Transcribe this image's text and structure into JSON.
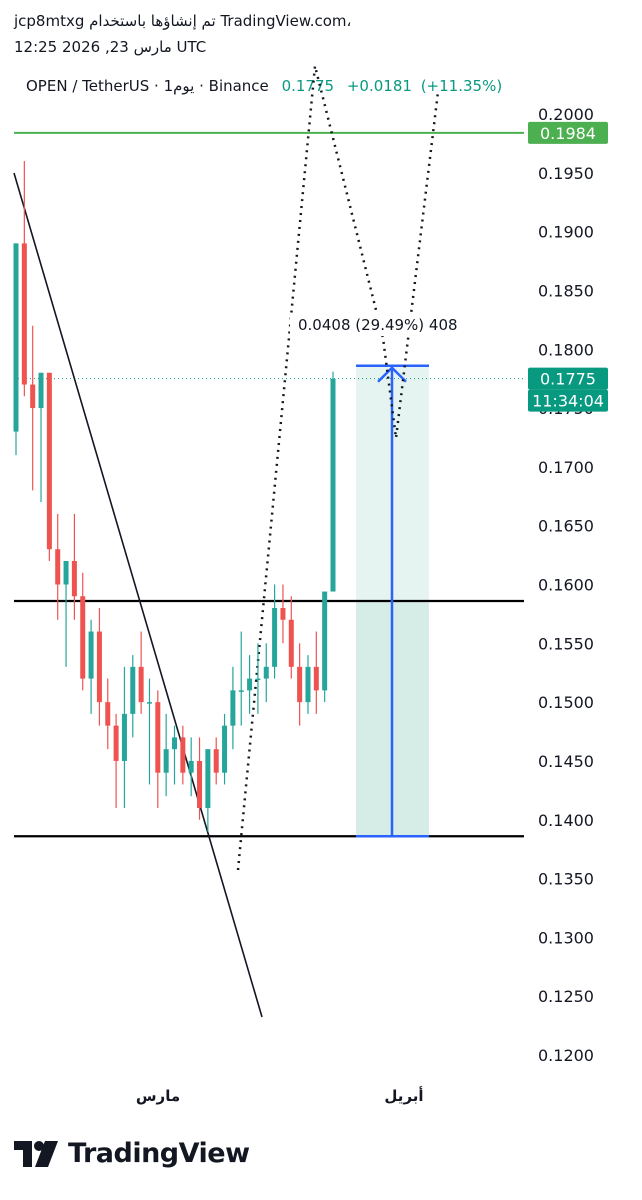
{
  "header": {
    "line1": "jcp8mtxg تم إنشاؤها باستخدام TradingView.com،",
    "line2": "مارس 23, 2026 12:25 UTC"
  },
  "legend": {
    "symbol": "OPEN / TetherUS · 1يوم · Binance",
    "price": "0.1775",
    "change": "+0.0181",
    "change_pct": "(+11.35%)"
  },
  "measure": {
    "label": "0.0408 (29.49%) 408"
  },
  "logo": {
    "text": "TradingView",
    "icon": "tradingview-logo-icon"
  },
  "chart_data": {
    "type": "candlestick",
    "y_axis": {
      "ticks": [
        "0.2000",
        "0.1950",
        "0.1900",
        "0.1850",
        "0.1800",
        "0.1750",
        "0.1700",
        "0.1650",
        "0.1600",
        "0.1550",
        "0.1500",
        "0.1450",
        "0.1400",
        "0.1350",
        "0.1300",
        "0.1250",
        "0.1200"
      ],
      "range": [
        0.12,
        0.2
      ]
    },
    "x_axis": {
      "labels": [
        "مارس",
        "أبريل"
      ]
    },
    "price_badges": [
      {
        "value": "0.1984",
        "color": "#4caf50"
      },
      {
        "value": "0.1775",
        "color": "#089981"
      },
      {
        "value": "11:34:04",
        "color": "#089981"
      }
    ],
    "horizontal_lines": [
      {
        "price": 0.1984,
        "color": "#4caf50"
      },
      {
        "price": 0.1586,
        "color": "#000000"
      },
      {
        "price": 0.1386,
        "color": "#000000"
      }
    ],
    "current_price_line": 0.1775,
    "colors": {
      "up": "#26a69a",
      "down": "#ef5350"
    },
    "candles": [
      {
        "o": 0.173,
        "h": 0.189,
        "l": 0.171,
        "c": 0.189
      },
      {
        "o": 0.189,
        "h": 0.196,
        "l": 0.176,
        "c": 0.177
      },
      {
        "o": 0.177,
        "h": 0.182,
        "l": 0.168,
        "c": 0.175
      },
      {
        "o": 0.175,
        "h": 0.178,
        "l": 0.167,
        "c": 0.178
      },
      {
        "o": 0.178,
        "h": 0.178,
        "l": 0.162,
        "c": 0.163
      },
      {
        "o": 0.163,
        "h": 0.166,
        "l": 0.157,
        "c": 0.16
      },
      {
        "o": 0.16,
        "h": 0.162,
        "l": 0.153,
        "c": 0.162
      },
      {
        "o": 0.162,
        "h": 0.166,
        "l": 0.157,
        "c": 0.159
      },
      {
        "o": 0.159,
        "h": 0.161,
        "l": 0.151,
        "c": 0.152
      },
      {
        "o": 0.152,
        "h": 0.157,
        "l": 0.149,
        "c": 0.156
      },
      {
        "o": 0.156,
        "h": 0.158,
        "l": 0.148,
        "c": 0.15
      },
      {
        "o": 0.15,
        "h": 0.152,
        "l": 0.146,
        "c": 0.148
      },
      {
        "o": 0.148,
        "h": 0.149,
        "l": 0.141,
        "c": 0.145
      },
      {
        "o": 0.145,
        "h": 0.153,
        "l": 0.141,
        "c": 0.149
      },
      {
        "o": 0.149,
        "h": 0.154,
        "l": 0.147,
        "c": 0.153
      },
      {
        "o": 0.153,
        "h": 0.156,
        "l": 0.149,
        "c": 0.15
      },
      {
        "o": 0.15,
        "h": 0.152,
        "l": 0.143,
        "c": 0.15
      },
      {
        "o": 0.15,
        "h": 0.151,
        "l": 0.141,
        "c": 0.144
      },
      {
        "o": 0.144,
        "h": 0.149,
        "l": 0.142,
        "c": 0.146
      },
      {
        "o": 0.146,
        "h": 0.148,
        "l": 0.143,
        "c": 0.147
      },
      {
        "o": 0.147,
        "h": 0.148,
        "l": 0.143,
        "c": 0.144
      },
      {
        "o": 0.144,
        "h": 0.147,
        "l": 0.142,
        "c": 0.145
      },
      {
        "o": 0.145,
        "h": 0.147,
        "l": 0.14,
        "c": 0.141
      },
      {
        "o": 0.141,
        "h": 0.146,
        "l": 0.139,
        "c": 0.146
      },
      {
        "o": 0.146,
        "h": 0.147,
        "l": 0.143,
        "c": 0.144
      },
      {
        "o": 0.144,
        "h": 0.149,
        "l": 0.143,
        "c": 0.148
      },
      {
        "o": 0.148,
        "h": 0.153,
        "l": 0.146,
        "c": 0.151
      },
      {
        "o": 0.151,
        "h": 0.156,
        "l": 0.148,
        "c": 0.151
      },
      {
        "o": 0.151,
        "h": 0.154,
        "l": 0.149,
        "c": 0.152
      },
      {
        "o": 0.152,
        "h": 0.155,
        "l": 0.149,
        "c": 0.152
      },
      {
        "o": 0.152,
        "h": 0.155,
        "l": 0.15,
        "c": 0.153
      },
      {
        "o": 0.153,
        "h": 0.16,
        "l": 0.152,
        "c": 0.158
      },
      {
        "o": 0.158,
        "h": 0.16,
        "l": 0.155,
        "c": 0.157
      },
      {
        "o": 0.157,
        "h": 0.159,
        "l": 0.152,
        "c": 0.153
      },
      {
        "o": 0.153,
        "h": 0.155,
        "l": 0.148,
        "c": 0.15
      },
      {
        "o": 0.15,
        "h": 0.154,
        "l": 0.149,
        "c": 0.153
      },
      {
        "o": 0.153,
        "h": 0.156,
        "l": 0.149,
        "c": 0.151
      },
      {
        "o": 0.151,
        "h": 0.159,
        "l": 0.15,
        "c": 0.1594
      },
      {
        "o": 0.1594,
        "h": 0.1781,
        "l": 0.1594,
        "c": 0.1775
      }
    ]
  }
}
